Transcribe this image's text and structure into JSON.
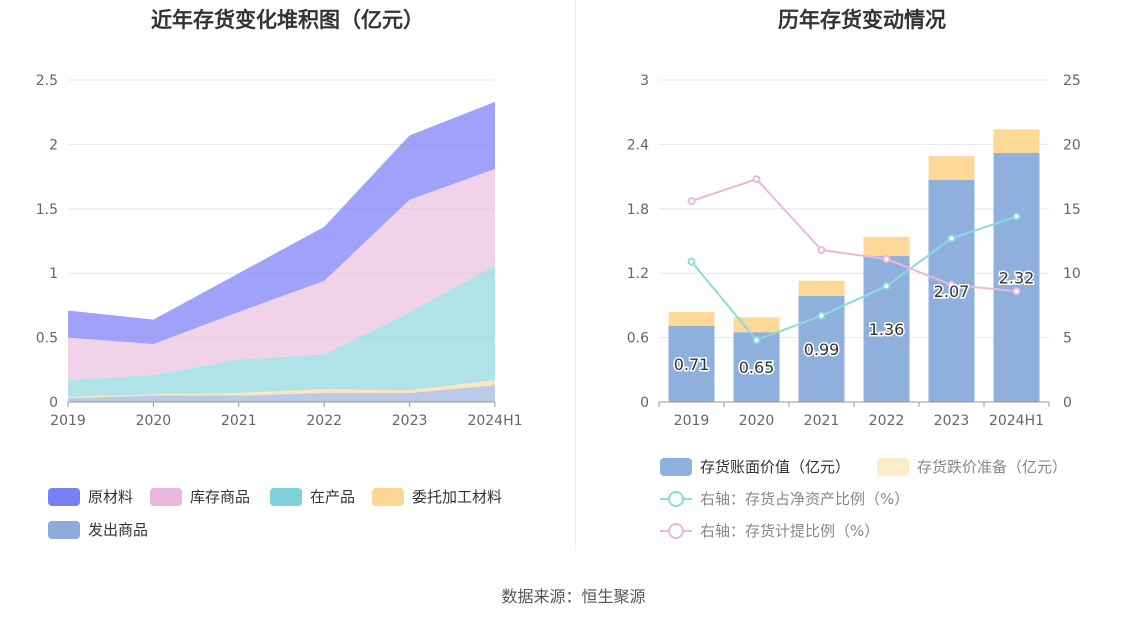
{
  "source": "数据来源：恒生聚源",
  "chart_data": [
    {
      "type": "area",
      "stacked": true,
      "title": "近年存货变化堆积图（亿元）",
      "categories": [
        "2019",
        "2020",
        "2021",
        "2022",
        "2023",
        "2024H1"
      ],
      "ylim": [
        0,
        2.5
      ],
      "yticks": [
        "0",
        "0.5",
        "1",
        "1.5",
        "2",
        "2.5"
      ],
      "grid": true,
      "legend_position": "bottom",
      "series": [
        {
          "name": "发出商品",
          "color": "#8fa9dc",
          "values": [
            0.03,
            0.05,
            0.05,
            0.07,
            0.07,
            0.13
          ]
        },
        {
          "name": "委托加工材料",
          "color": "#fcd795",
          "values": [
            0.01,
            0.01,
            0.02,
            0.03,
            0.02,
            0.04
          ]
        },
        {
          "name": "在产品",
          "color": "#7fd2d9",
          "values": [
            0.13,
            0.15,
            0.26,
            0.27,
            0.61,
            0.89
          ]
        },
        {
          "name": "库存商品",
          "color": "#e9b8dc",
          "values": [
            0.33,
            0.24,
            0.37,
            0.57,
            0.87,
            0.75
          ]
        },
        {
          "name": "原材料",
          "color": "#7a7ef5",
          "values": [
            0.21,
            0.19,
            0.3,
            0.42,
            0.5,
            0.52
          ]
        }
      ],
      "legend_order": [
        "原材料",
        "库存商品",
        "在产品",
        "委托加工材料",
        "发出商品"
      ]
    },
    {
      "type": "bar",
      "stacked": true,
      "title": "历年存货变动情况",
      "categories": [
        "2019",
        "2020",
        "2021",
        "2022",
        "2023",
        "2024H1"
      ],
      "ylim": [
        0,
        3
      ],
      "yticks": [
        "0",
        "0.6",
        "1.2",
        "1.8",
        "2.4",
        "3"
      ],
      "y2lim": [
        0,
        25
      ],
      "y2ticks": [
        "0",
        "5",
        "10",
        "15",
        "20",
        "25"
      ],
      "grid": true,
      "legend_position": "bottom",
      "series": [
        {
          "name": "存货账面价值（亿元）",
          "color": "#8fafdc",
          "values": [
            0.71,
            0.65,
            0.99,
            1.36,
            2.07,
            2.32
          ],
          "labels": [
            "0.71",
            "0.65",
            "0.99",
            "1.36",
            "2.07",
            "2.32"
          ]
        },
        {
          "name": "存货跌价准备（亿元）",
          "color": "#fdd896",
          "values": [
            0.13,
            0.14,
            0.14,
            0.18,
            0.22,
            0.22
          ]
        }
      ],
      "lines": [
        {
          "name": "右轴：存货占净资产比例（%）",
          "color": "#87dcdc",
          "axis": "right",
          "values": [
            10.9,
            4.8,
            6.7,
            9.0,
            12.7,
            14.4
          ]
        },
        {
          "name": "右轴：存货计提比例（%）",
          "color": "#e9b8dc",
          "axis": "right",
          "values": [
            15.6,
            17.3,
            11.8,
            11.1,
            9.1,
            8.6
          ]
        }
      ]
    }
  ]
}
